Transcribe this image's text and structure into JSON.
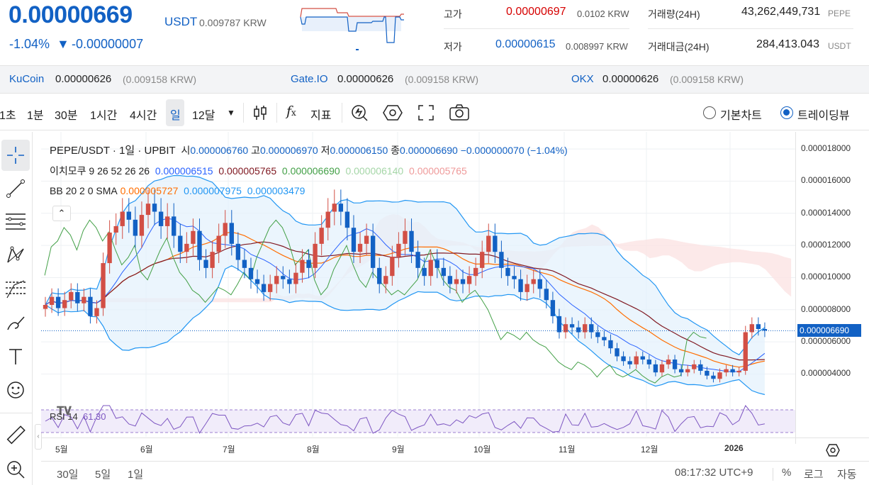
{
  "header": {
    "price": "0.00000669",
    "unit": "USDT",
    "price_krw": "0.009787 KRW",
    "change_pct": "-1.04%",
    "change_arrow": "▼",
    "change_abs": "-0.00000007",
    "high_label": "고가",
    "high_value": "0.00000697",
    "high_krw": "0.0102 KRW",
    "low_label": "저가",
    "low_value": "0.00000615",
    "low_krw": "0.008997 KRW",
    "volume_label": "거래량(24H)",
    "volume_value": "43,262,449,731",
    "volume_unit": "PEPE",
    "turnover_label": "거래대금(24H)",
    "turnover_value": "284,413.043",
    "turnover_unit": "USDT"
  },
  "exchanges": [
    {
      "name": "KuCoin",
      "price": "0.00000626",
      "krw": "(0.009158 KRW)"
    },
    {
      "name": "Gate.IO",
      "price": "0.00000626",
      "krw": "(0.009158 KRW)"
    },
    {
      "name": "OKX",
      "price": "0.00000626",
      "krw": "(0.009158 KRW)"
    }
  ],
  "toolbar": {
    "intervals": [
      "1초",
      "1분",
      "30분",
      "1시간",
      "4시간",
      "일",
      "12달"
    ],
    "selected_interval": "일",
    "indicator_label": "지표",
    "chart_type_basic": "기본차트",
    "chart_type_trading": "트레이딩뷰",
    "chart_type_selected": "트레이딩뷰"
  },
  "legend": {
    "symbol": "PEPE/USDT · 1일 · UPBIT",
    "open_label": "시",
    "open": "0.000006760",
    "high_label": "고",
    "high": "0.000006970",
    "low_label": "저",
    "low": "0.000006150",
    "close_label": "종",
    "close": "0.000006690",
    "change": "−0.000000070 (−1.04%)",
    "ichimoku_label": "이치모쿠 9 26 52 26 26",
    "ichimoku_values": [
      "0.000006515",
      "0.000005765",
      "0.000006690",
      "0.000006140",
      "0.000005765"
    ],
    "bb_label": "BB 20 2 0 SMA",
    "bb_values": [
      "0.000005727",
      "0.000007975",
      "0.000003479"
    ],
    "rsi_label": "RSI 14",
    "rsi_value": "61.30"
  },
  "colors": {
    "up": "#d24f45",
    "down": "#1261c4",
    "bb_mid": "#ff6d00",
    "bb_band": "#2196f3",
    "conversion": "#2962ff",
    "base": "#801922",
    "lagging": "#43a047",
    "lead_a": "#a5d6a7",
    "lead_b": "#ef9a9a",
    "rsi": "#7e57c2"
  },
  "chart_data": {
    "type": "candlestick",
    "y_ticks": [
      "0.000018000",
      "0.000016000",
      "0.000014000",
      "0.000012000",
      "0.000010000",
      "0.000008000",
      "0.000006000",
      "0.000004000"
    ],
    "y_range": [
      2.3e-06,
      1.88e-05
    ],
    "x_ticks": [
      "5월",
      "6월",
      "7월",
      "8월",
      "9월",
      "10월",
      "11월",
      "12월",
      "2026"
    ],
    "last_price_label": "0.000006690",
    "last_price": 6.69e-06,
    "series_close": [
      8.3,
      8.8,
      8.1,
      8.6,
      9.1,
      8.4,
      8.8,
      7.6,
      8.1,
      10.9,
      12.8,
      13.2,
      14.1,
      13.6,
      12.6,
      13.9,
      14.6,
      14.1,
      13.2,
      13.8,
      12.6,
      11.6,
      12.1,
      12.9,
      11.1,
      10.6,
      11.6,
      12.6,
      13.4,
      12.1,
      11.1,
      10.6,
      9.9,
      9.6,
      9.1,
      9.6,
      10.1,
      9.9,
      9.6,
      10.3,
      11.1,
      10.6,
      12.1,
      13.1,
      14.1,
      14.6,
      14.1,
      13.1,
      11.6,
      12.1,
      12.6,
      10.6,
      9.6,
      10.1,
      11.3,
      12.1,
      12.9,
      11.6,
      10.6,
      10.1,
      11.1,
      10.6,
      10.1,
      9.6,
      9.9,
      9.6,
      10.1,
      10.6,
      11.6,
      12.6,
      11.6,
      10.6,
      10.1,
      9.9,
      9.1,
      9.6,
      9.9,
      9.3,
      8.6,
      7.6,
      6.6,
      7.1,
      6.9,
      6.6,
      7.1,
      6.6,
      6.3,
      6.1,
      5.6,
      5.1,
      4.8,
      4.6,
      5.1,
      4.9,
      4.6,
      4.1,
      4.6,
      4.9,
      4.3,
      4.1,
      4.3,
      4.6,
      4.2,
      3.9,
      3.7,
      4.1,
      4.3,
      4.1,
      4.2,
      6.6,
      7.1,
      6.8,
      6.7
    ],
    "bb_upper_label": "0.000007975",
    "bb_lower_label": "0.000003479"
  },
  "rsi": {
    "value": "61.30"
  },
  "bottom": {
    "ranges": [
      "30일",
      "5일",
      "1일"
    ],
    "time": "08:17:32 UTC+9",
    "pct": "%",
    "log": "로그",
    "auto": "자동"
  }
}
